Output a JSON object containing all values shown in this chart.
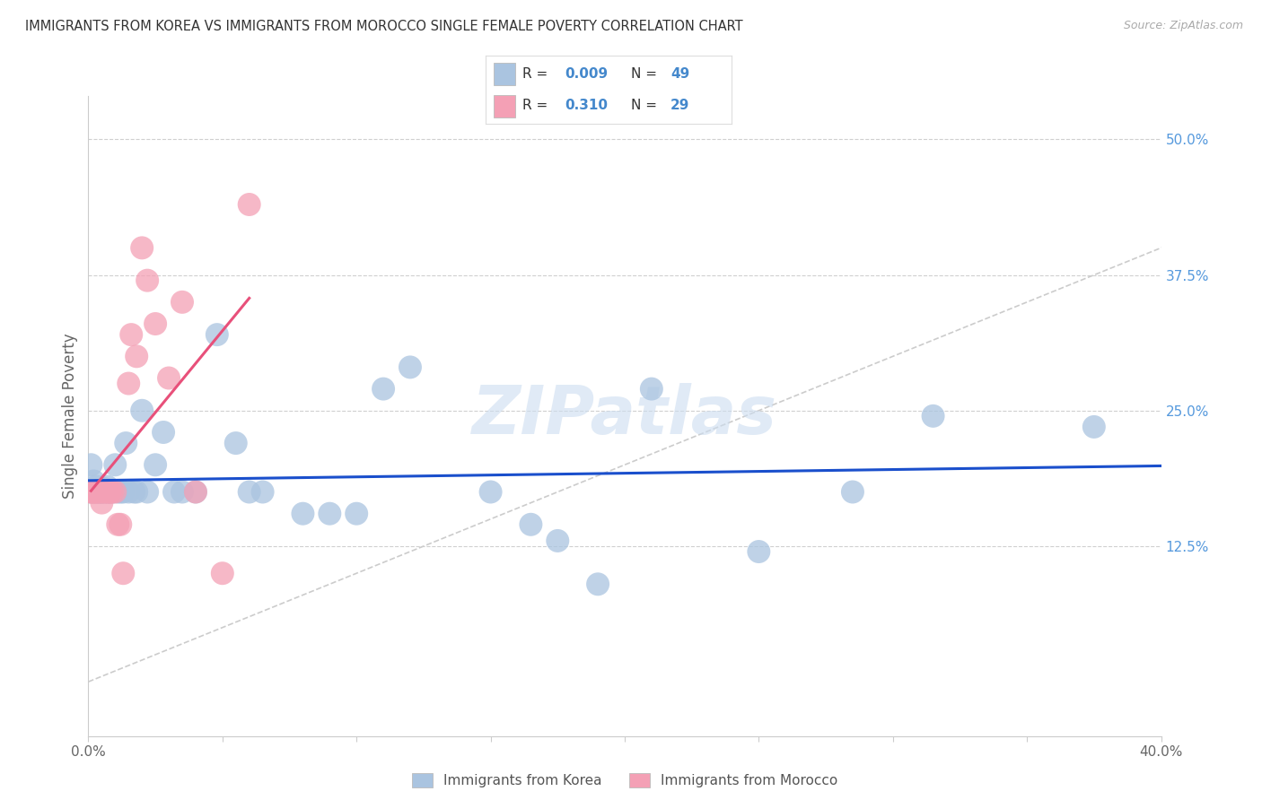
{
  "title": "IMMIGRANTS FROM KOREA VS IMMIGRANTS FROM MOROCCO SINGLE FEMALE POVERTY CORRELATION CHART",
  "source": "Source: ZipAtlas.com",
  "ylabel": "Single Female Poverty",
  "legend_korea": "Immigrants from Korea",
  "legend_morocco": "Immigrants from Morocco",
  "R_korea": "0.009",
  "N_korea": "49",
  "R_morocco": "0.310",
  "N_morocco": "29",
  "xlim": [
    0.0,
    0.4
  ],
  "ylim": [
    -0.05,
    0.54
  ],
  "xticks": [
    0.0,
    0.05,
    0.1,
    0.15,
    0.2,
    0.25,
    0.3,
    0.35,
    0.4
  ],
  "xticklabels": [
    "0.0%",
    "",
    "",
    "",
    "",
    "",
    "",
    "",
    "40.0%"
  ],
  "right_ytick_vals": [
    0.5,
    0.375,
    0.25,
    0.125
  ],
  "right_ytick_labels": [
    "50.0%",
    "37.5%",
    "25.0%",
    "12.5%"
  ],
  "korea_color": "#aac4e0",
  "morocco_color": "#f4a0b5",
  "korea_line_color": "#1a4fcc",
  "morocco_line_color": "#e8507a",
  "diagonal_color": "#cccccc",
  "watermark": "ZIPatlas",
  "korea_x": [
    0.001,
    0.001,
    0.002,
    0.002,
    0.003,
    0.003,
    0.004,
    0.004,
    0.005,
    0.005,
    0.006,
    0.006,
    0.007,
    0.007,
    0.008,
    0.009,
    0.01,
    0.011,
    0.012,
    0.013,
    0.014,
    0.015,
    0.017,
    0.018,
    0.02,
    0.022,
    0.025,
    0.028,
    0.032,
    0.035,
    0.04,
    0.048,
    0.055,
    0.06,
    0.065,
    0.08,
    0.09,
    0.1,
    0.11,
    0.12,
    0.15,
    0.165,
    0.175,
    0.19,
    0.21,
    0.25,
    0.285,
    0.315,
    0.375
  ],
  "korea_y": [
    0.175,
    0.2,
    0.185,
    0.175,
    0.18,
    0.175,
    0.175,
    0.175,
    0.175,
    0.175,
    0.178,
    0.175,
    0.175,
    0.18,
    0.175,
    0.175,
    0.2,
    0.175,
    0.175,
    0.175,
    0.22,
    0.175,
    0.175,
    0.175,
    0.25,
    0.175,
    0.2,
    0.23,
    0.175,
    0.175,
    0.175,
    0.32,
    0.22,
    0.175,
    0.175,
    0.155,
    0.155,
    0.155,
    0.27,
    0.29,
    0.175,
    0.145,
    0.13,
    0.09,
    0.27,
    0.12,
    0.175,
    0.245,
    0.235
  ],
  "morocco_x": [
    0.001,
    0.001,
    0.002,
    0.002,
    0.003,
    0.003,
    0.004,
    0.005,
    0.005,
    0.006,
    0.007,
    0.008,
    0.008,
    0.009,
    0.01,
    0.011,
    0.012,
    0.013,
    0.015,
    0.016,
    0.018,
    0.02,
    0.022,
    0.025,
    0.03,
    0.035,
    0.04,
    0.05,
    0.06
  ],
  "morocco_y": [
    0.175,
    0.175,
    0.175,
    0.175,
    0.175,
    0.175,
    0.175,
    0.175,
    0.165,
    0.175,
    0.175,
    0.175,
    0.175,
    0.175,
    0.175,
    0.145,
    0.145,
    0.1,
    0.275,
    0.32,
    0.3,
    0.4,
    0.37,
    0.33,
    0.28,
    0.35,
    0.175,
    0.1,
    0.44
  ]
}
